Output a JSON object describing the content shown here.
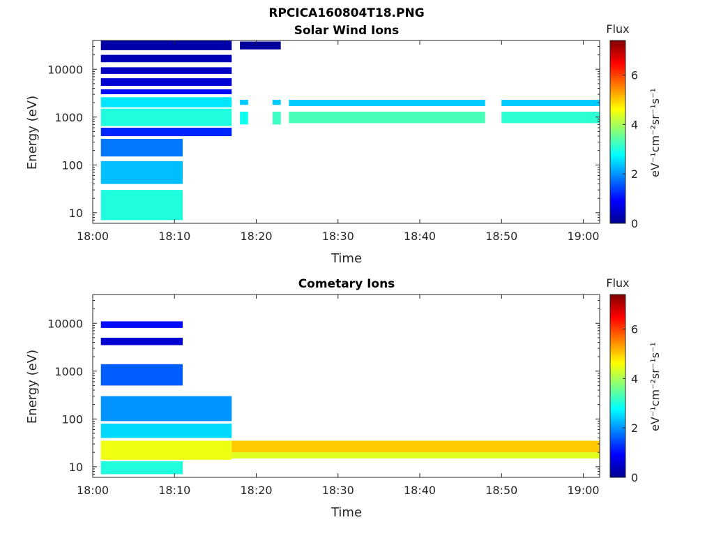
{
  "figure": {
    "title": "RPCICA160804T18.PNG"
  },
  "colorbar": {
    "title": "Flux",
    "label": "eV⁻¹cm⁻²sr⁻¹s⁻¹",
    "range": [
      0,
      7.4
    ],
    "ticks": [
      "0",
      "2",
      "4",
      "6"
    ]
  },
  "chart_data": [
    {
      "type": "heatmap",
      "title": "Solar Wind Ions",
      "xlabel": "Time",
      "ylabel": "Energy (eV)",
      "x_range": [
        "18:00",
        "19:02"
      ],
      "y_scale": "log",
      "y_range": [
        6,
        40000
      ],
      "x_ticks": [
        "18:00",
        "18:10",
        "18:20",
        "18:30",
        "18:40",
        "18:50",
        "19:00"
      ],
      "y_ticks": [
        "10",
        "100",
        "1000",
        "10000"
      ],
      "colorscale": "jet",
      "cells": [
        {
          "t0": "18:01",
          "t1": "18:17",
          "e0": 25000,
          "e1": 40000,
          "flux": 0.3
        },
        {
          "t0": "18:01",
          "t1": "18:17",
          "e0": 14000,
          "e1": 20000,
          "flux": 0.4
        },
        {
          "t0": "18:01",
          "t1": "18:17",
          "e0": 8000,
          "e1": 11000,
          "flux": 0.5
        },
        {
          "t0": "18:01",
          "t1": "18:17",
          "e0": 4500,
          "e1": 6500,
          "flux": 0.6
        },
        {
          "t0": "18:01",
          "t1": "18:17",
          "e0": 3000,
          "e1": 3800,
          "flux": 1.0
        },
        {
          "t0": "18:01",
          "t1": "18:17",
          "e0": 1600,
          "e1": 2600,
          "flux": 2.6
        },
        {
          "t0": "18:01",
          "t1": "18:17",
          "e0": 650,
          "e1": 1500,
          "flux": 3.0
        },
        {
          "t0": "18:01",
          "t1": "18:17",
          "e0": 400,
          "e1": 600,
          "flux": 1.2
        },
        {
          "t0": "18:01",
          "t1": "18:11",
          "e0": 150,
          "e1": 350,
          "flux": 1.8
        },
        {
          "t0": "18:01",
          "t1": "18:11",
          "e0": 40,
          "e1": 120,
          "flux": 2.3
        },
        {
          "t0": "18:01",
          "t1": "18:11",
          "e0": 7,
          "e1": 30,
          "flux": 3.0
        },
        {
          "t0": "18:18",
          "t1": "18:23",
          "e0": 26000,
          "e1": 38000,
          "flux": 0.2
        },
        {
          "t0": "18:18",
          "t1": "18:19",
          "e0": 1800,
          "e1": 2300,
          "flux": 2.4
        },
        {
          "t0": "18:18",
          "t1": "18:19",
          "e0": 700,
          "e1": 1300,
          "flux": 2.9
        },
        {
          "t0": "18:22",
          "t1": "18:23",
          "e0": 1800,
          "e1": 2300,
          "flux": 2.4
        },
        {
          "t0": "18:22",
          "t1": "18:23",
          "e0": 700,
          "e1": 1300,
          "flux": 3.2
        },
        {
          "t0": "18:24",
          "t1": "18:48",
          "e0": 1700,
          "e1": 2300,
          "flux": 2.4
        },
        {
          "t0": "18:24",
          "t1": "18:48",
          "e0": 750,
          "e1": 1300,
          "flux": 3.3
        },
        {
          "t0": "18:50",
          "t1": "19:02",
          "e0": 1700,
          "e1": 2300,
          "flux": 2.4
        },
        {
          "t0": "18:50",
          "t1": "19:02",
          "e0": 750,
          "e1": 1300,
          "flux": 3.1
        }
      ]
    },
    {
      "type": "heatmap",
      "title": "Cometary Ions",
      "xlabel": "Time",
      "ylabel": "Energy (eV)",
      "x_range": [
        "18:00",
        "19:02"
      ],
      "y_scale": "log",
      "y_range": [
        6,
        40000
      ],
      "x_ticks": [
        "18:00",
        "18:10",
        "18:20",
        "18:30",
        "18:40",
        "18:50",
        "19:00"
      ],
      "y_ticks": [
        "10",
        "100",
        "1000",
        "10000"
      ],
      "colorscale": "jet",
      "cells": [
        {
          "t0": "18:01",
          "t1": "18:11",
          "e0": 8000,
          "e1": 11000,
          "flux": 1.0
        },
        {
          "t0": "18:01",
          "t1": "18:11",
          "e0": 3500,
          "e1": 5000,
          "flux": 0.6
        },
        {
          "t0": "18:01",
          "t1": "18:11",
          "e0": 500,
          "e1": 1400,
          "flux": 1.6
        },
        {
          "t0": "18:01",
          "t1": "18:17",
          "e0": 90,
          "e1": 300,
          "flux": 2.0
        },
        {
          "t0": "18:01",
          "t1": "18:17",
          "e0": 40,
          "e1": 80,
          "flux": 2.5
        },
        {
          "t0": "18:01",
          "t1": "18:17",
          "e0": 14,
          "e1": 35,
          "flux": 4.5
        },
        {
          "t0": "18:01",
          "t1": "18:11",
          "e0": 7,
          "e1": 13,
          "flux": 3.0
        },
        {
          "t0": "18:17",
          "t1": "19:02",
          "e0": 20,
          "e1": 35,
          "flux": 5.0
        },
        {
          "t0": "18:17",
          "t1": "19:02",
          "e0": 15,
          "e1": 20,
          "flux": 4.4
        }
      ]
    }
  ]
}
